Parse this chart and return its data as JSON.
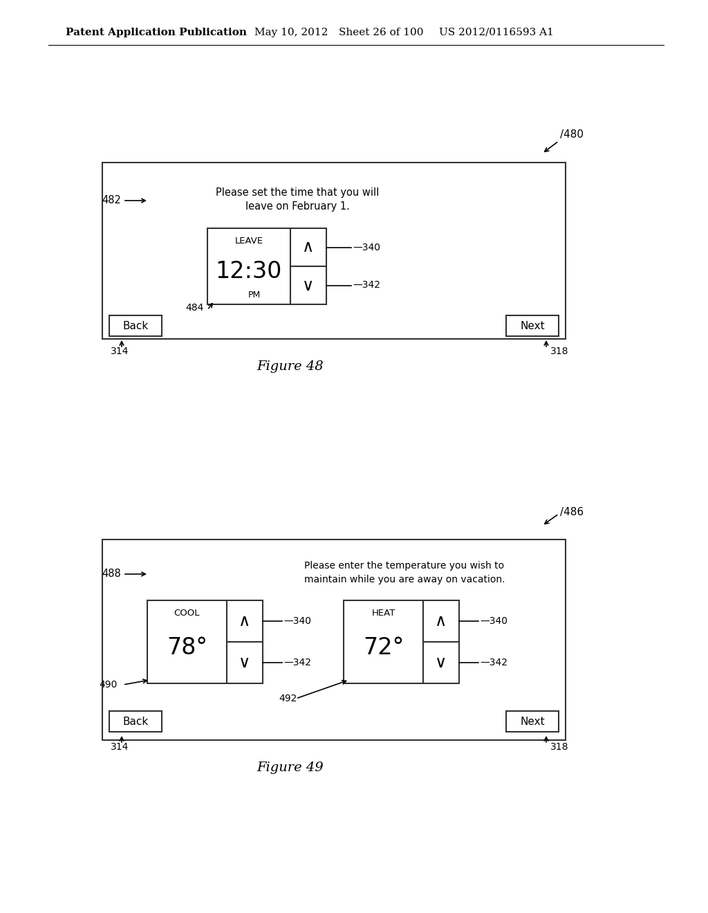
{
  "bg_color": "#ffffff",
  "header_text": "Patent Application Publication",
  "header_date": "May 10, 2012",
  "header_sheet": "Sheet 26 of 100",
  "header_patent": "US 2012/0116593 A1",
  "fig48": {
    "label": "480",
    "screen_label": "482",
    "screen_text_line1": "Please set the time that you will",
    "screen_text_line2": "leave on February 1.",
    "leave_label": "LEAVE",
    "time_text": "12:30",
    "pm_text": "PM",
    "up_label": "340",
    "down_label": "342",
    "back_label": "Back",
    "next_label": "Next",
    "btn_back_ref": "314",
    "btn_next_ref": "318",
    "widget_label": "484",
    "caption": "Figure 48"
  },
  "fig49": {
    "label": "486",
    "screen_label": "488",
    "screen_text_line1": "Please enter the temperature you wish to",
    "screen_text_line2": "maintain while you are away on vacation.",
    "cool_label": "COOL",
    "cool_value": "78°",
    "heat_label": "HEAT",
    "heat_value": "72°",
    "up_label": "340",
    "down_label": "342",
    "back_label": "Back",
    "next_label": "Next",
    "btn_back_ref": "314",
    "btn_next_ref": "318",
    "widget1_label": "490",
    "widget2_label": "492",
    "caption": "Figure 49"
  }
}
